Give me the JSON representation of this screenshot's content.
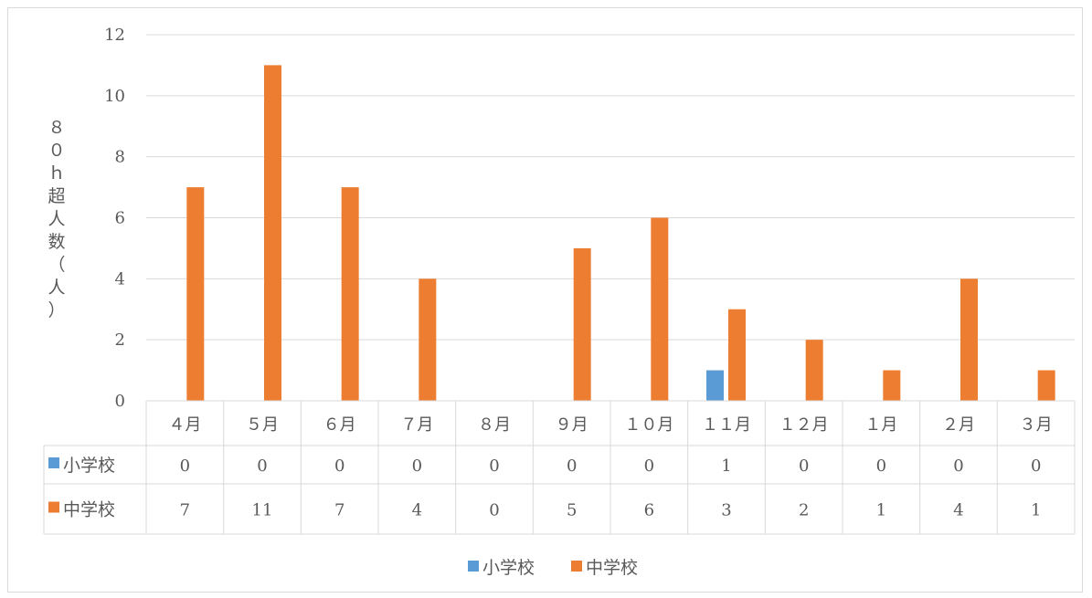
{
  "chart_data": {
    "type": "bar",
    "ylabel": "８０ｈ超人数（人）",
    "ylabel_chars": [
      "８",
      "０",
      "ｈ",
      "超",
      "人",
      "数",
      "（",
      "人",
      "）"
    ],
    "ylim": [
      0,
      12
    ],
    "yticks": [
      0,
      2,
      4,
      6,
      8,
      10,
      12
    ],
    "grid": true,
    "legend_position": "bottom",
    "categories": [
      "４月",
      "５月",
      "６月",
      "７月",
      "８月",
      "９月",
      "１０月",
      "１１月",
      "１２月",
      "１月",
      "２月",
      "３月"
    ],
    "series": [
      {
        "name": "小学校",
        "color": "#5b9bd5",
        "values": [
          0,
          0,
          0,
          0,
          0,
          0,
          0,
          1,
          0,
          0,
          0,
          0
        ]
      },
      {
        "name": "中学校",
        "color": "#ed7d31",
        "values": [
          7,
          11,
          7,
          4,
          0,
          5,
          6,
          3,
          2,
          1,
          4,
          1
        ]
      }
    ],
    "data_table": true
  }
}
